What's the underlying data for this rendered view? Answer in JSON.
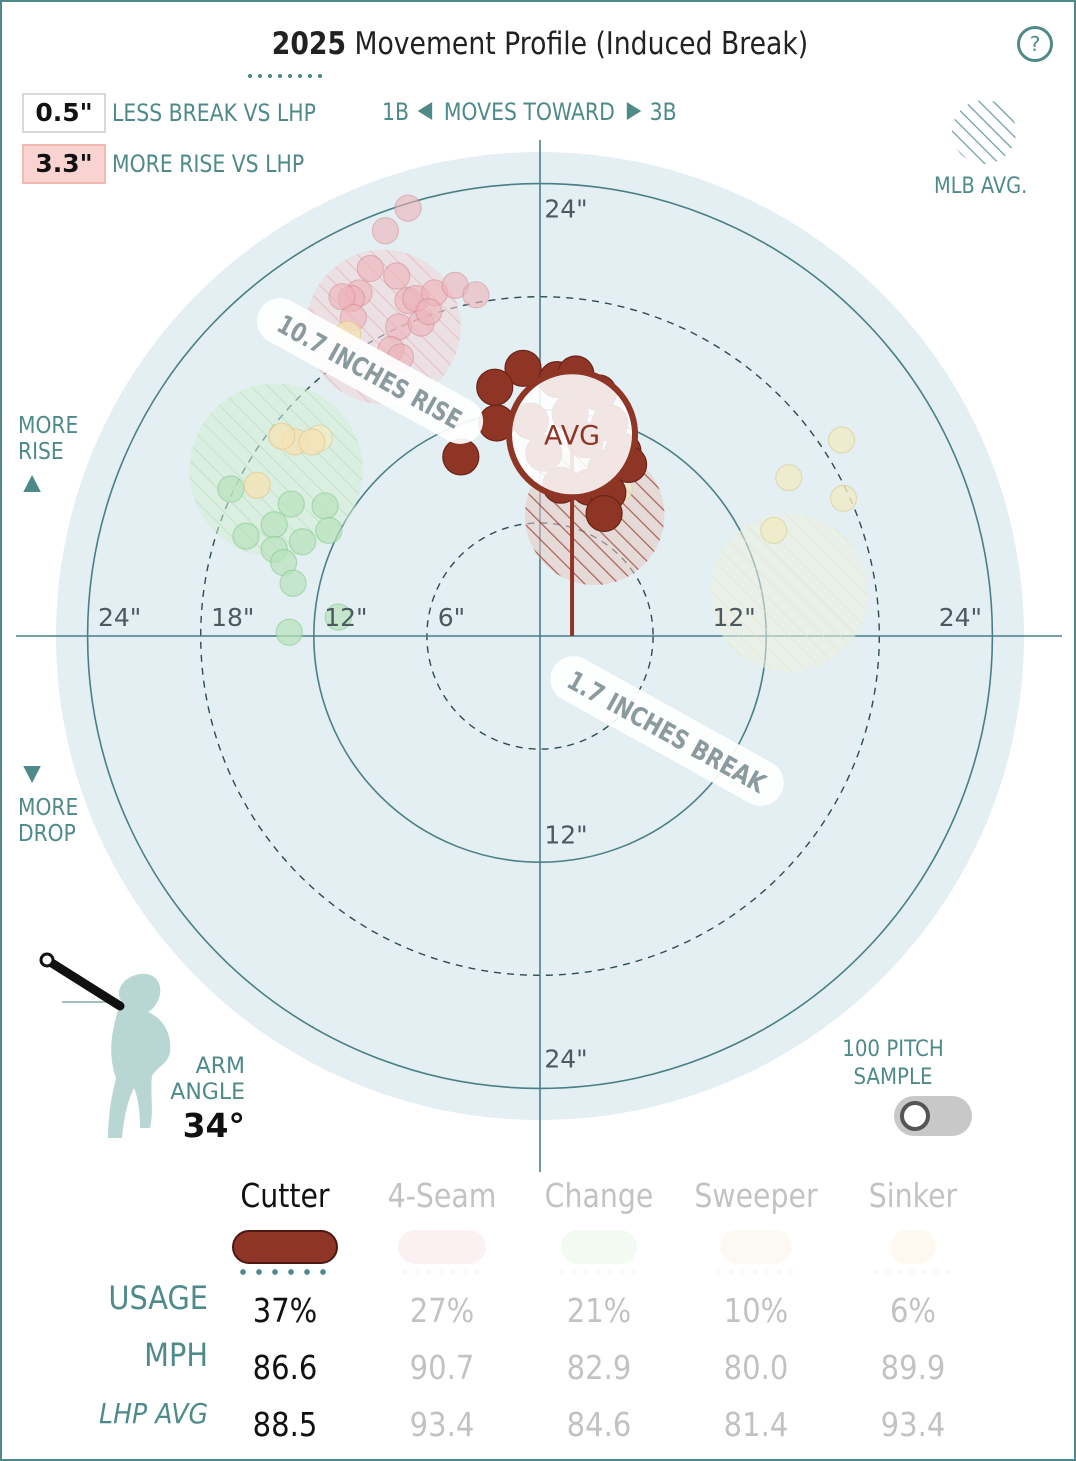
{
  "title": {
    "year": "2025",
    "rest": " Movement Profile (Induced Break)"
  },
  "help_label": "?",
  "legend": {
    "break_value": "0.5\"",
    "break_label": "LESS BREAK VS LHP",
    "rise_value": "3.3\"",
    "rise_label": "MORE RISE VS LHP",
    "direction_left": "1B",
    "direction_mid": "MOVES TOWARD",
    "direction_right": "3B",
    "mlb_avg_label": "MLB AVG."
  },
  "side_labels": {
    "more_rise": [
      "MORE",
      "RISE"
    ],
    "more_drop": [
      "MORE",
      "DROP"
    ]
  },
  "arm": {
    "label_1": "ARM",
    "label_2": "ANGLE",
    "value": "34°"
  },
  "sample": {
    "label_1": "100 PITCH",
    "label_2": "SAMPLE"
  },
  "colors": {
    "cutter": "#8f3526",
    "fourseam": "#e8a1aa",
    "change": "#93d69c",
    "sweeper": "#ecd9a8",
    "sinker": "#f3d6a4",
    "plot_bg": "#e3eff2",
    "axis": "#4a7f86",
    "accent": "#4f8a8b"
  },
  "stat_rows": [
    "USAGE",
    "MPH",
    "LHP AVG"
  ],
  "pitches": [
    {
      "name": "Cutter",
      "usage": "37%",
      "mph": "86.6",
      "lhp_avg": "88.5",
      "active": true,
      "color": "#8f3526"
    },
    {
      "name": "4-Seam",
      "usage": "27%",
      "mph": "90.7",
      "lhp_avg": "93.4",
      "active": false,
      "color": "#f5c9cf"
    },
    {
      "name": "Change",
      "usage": "21%",
      "mph": "82.9",
      "lhp_avg": "84.6",
      "active": false,
      "color": "#cdeecf"
    },
    {
      "name": "Sweeper",
      "usage": "10%",
      "mph": "80.0",
      "lhp_avg": "81.4",
      "active": false,
      "color": "#f6ebcf"
    },
    {
      "name": "Sinker",
      "usage": "6%",
      "mph": "89.9",
      "lhp_avg": "93.4",
      "active": false,
      "color": "#fbe6c7"
    }
  ],
  "chart_data": {
    "type": "scatter",
    "title": "2025 Movement Profile (Induced Break)",
    "xlabel_left": "1B",
    "xlabel_right": "3B",
    "ring_labels": [
      "6\"",
      "12\"",
      "18\"",
      "24\""
    ],
    "axis_labels": {
      "left": [
        "24\"",
        "18\"",
        "12\"",
        "6\""
      ],
      "right": [
        "12\"",
        "24\""
      ],
      "top": [
        "24\""
      ],
      "bottom": [
        "12\"",
        "24\""
      ]
    },
    "xlim": [
      -24,
      24
    ],
    "ylim": [
      -24,
      24
    ],
    "rings_solid": [
      12,
      24
    ],
    "rings_dashed": [
      6,
      18
    ],
    "avg_label": "AVG",
    "avg_point": {
      "x": 1.7,
      "y": 10.7
    },
    "rise_callout": "10.7 INCHES RISE",
    "break_callout": "1.7 INCHES BREAK",
    "mlb_avg_regions": [
      {
        "pitch": "Cutter",
        "x": 2.9,
        "y": 6.4,
        "r": 3.7
      },
      {
        "pitch": "4-Seam",
        "x": -8.3,
        "y": 16.4,
        "r": 4.1
      },
      {
        "pitch": "Change",
        "x": -14.0,
        "y": 8.8,
        "r": 4.6
      },
      {
        "pitch": "Sweeper",
        "x": 13.2,
        "y": 2.3,
        "r": 4.2
      }
    ],
    "series": [
      {
        "name": "Cutter",
        "points": [
          [
            -0.9,
            14.2
          ],
          [
            0.9,
            13.6
          ],
          [
            2.1,
            13.0
          ],
          [
            -2.4,
            13.2
          ],
          [
            3.1,
            12.9
          ],
          [
            1.6,
            11.8
          ],
          [
            3.7,
            11.3
          ],
          [
            -0.5,
            11.4
          ],
          [
            2.4,
            10.4
          ],
          [
            0.2,
            9.7
          ],
          [
            4.4,
            9.8
          ],
          [
            4.7,
            9.1
          ],
          [
            3.5,
            8.9
          ],
          [
            1.1,
            8.0
          ],
          [
            2.6,
            7.9
          ],
          [
            3.6,
            7.6
          ],
          [
            3.4,
            6.5
          ],
          [
            -4.2,
            9.5
          ],
          [
            -2.3,
            11.3
          ],
          [
            1.9,
            13.9
          ]
        ]
      },
      {
        "name": "4-Seam",
        "points": [
          [
            -7.0,
            22.7
          ],
          [
            -8.2,
            21.5
          ],
          [
            -9.0,
            19.5
          ],
          [
            -7.6,
            19.1
          ],
          [
            -9.6,
            18.2
          ],
          [
            -10.0,
            17.9
          ],
          [
            -7.0,
            17.8
          ],
          [
            -6.6,
            17.9
          ],
          [
            -5.6,
            18.2
          ],
          [
            -4.5,
            18.6
          ],
          [
            -3.4,
            18.1
          ],
          [
            -10.5,
            18.0
          ],
          [
            -9.9,
            16.9
          ],
          [
            -7.5,
            16.4
          ],
          [
            -6.3,
            16.6
          ],
          [
            -7.9,
            15.2
          ],
          [
            -7.4,
            14.8
          ],
          [
            -5.9,
            17.2
          ]
        ]
      },
      {
        "name": "Change",
        "points": [
          [
            -16.4,
            7.8
          ],
          [
            -13.2,
            7.0
          ],
          [
            -11.4,
            6.9
          ],
          [
            -15.6,
            5.3
          ],
          [
            -14.1,
            5.9
          ],
          [
            -14.1,
            4.6
          ],
          [
            -12.6,
            5.0
          ],
          [
            -11.2,
            5.6
          ],
          [
            -13.6,
            3.9
          ],
          [
            -10.7,
            1.0
          ],
          [
            -13.1,
            2.8
          ],
          [
            -13.3,
            0.2
          ]
        ]
      },
      {
        "name": "Sweeper",
        "points": [
          [
            13.2,
            8.4
          ],
          [
            16.0,
            10.4
          ],
          [
            16.1,
            7.3
          ],
          [
            12.4,
            5.6
          ],
          [
            4.2,
            7.8
          ],
          [
            -11.7,
            10.5
          ]
        ]
      },
      {
        "name": "Sinker",
        "points": [
          [
            -13.0,
            10.3
          ],
          [
            -13.7,
            10.6
          ],
          [
            -12.1,
            10.3
          ],
          [
            -15.0,
            8.0
          ],
          [
            -10.2,
            16.0
          ]
        ]
      }
    ]
  }
}
